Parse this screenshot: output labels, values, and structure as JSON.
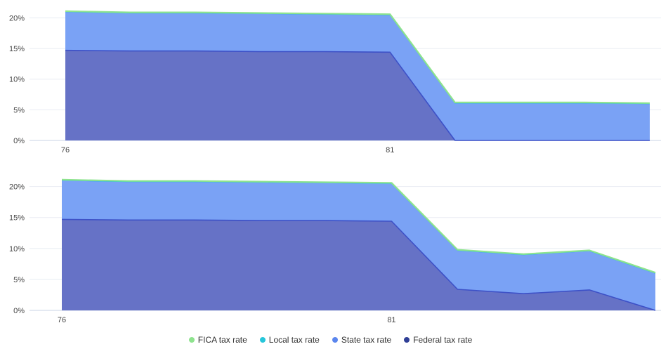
{
  "chart_data": [
    {
      "type": "area",
      "stacked": true,
      "x_labels": [
        "76",
        "",
        "",
        "",
        "",
        "81",
        "",
        "",
        "",
        ""
      ],
      "x_tick_labels": [
        "76",
        "81"
      ],
      "y_ticks": [
        "0%",
        "5%",
        "10%",
        "15%",
        "20%"
      ],
      "ylim": [
        0,
        22
      ],
      "grid": true,
      "series": [
        {
          "name": "Federal tax rate",
          "values": [
            14.7,
            14.6,
            14.6,
            14.5,
            14.5,
            14.4,
            0,
            0,
            0,
            0
          ]
        },
        {
          "name": "State tax rate",
          "values": [
            6.3,
            6.2,
            6.2,
            6.2,
            6.1,
            6.1,
            6.1,
            6.1,
            6.1,
            6.0
          ]
        },
        {
          "name": "Local tax rate",
          "values": [
            0,
            0,
            0,
            0,
            0,
            0,
            0,
            0,
            0,
            0
          ]
        },
        {
          "name": "FICA tax rate",
          "values": [
            0.1,
            0.1,
            0.1,
            0.1,
            0.1,
            0.1,
            0.1,
            0.1,
            0.1,
            0.1
          ]
        }
      ]
    },
    {
      "type": "area",
      "stacked": true,
      "x_labels": [
        "76",
        "",
        "",
        "",
        "",
        "81",
        "",
        "",
        "",
        ""
      ],
      "x_tick_labels": [
        "76",
        "81"
      ],
      "y_ticks": [
        "0%",
        "5%",
        "10%",
        "15%",
        "20%"
      ],
      "ylim": [
        0,
        22
      ],
      "grid": true,
      "series": [
        {
          "name": "Federal tax rate",
          "values": [
            14.7,
            14.6,
            14.6,
            14.5,
            14.5,
            14.4,
            3.4,
            2.7,
            3.3,
            0
          ]
        },
        {
          "name": "State tax rate",
          "values": [
            6.3,
            6.2,
            6.2,
            6.2,
            6.1,
            6.1,
            6.3,
            6.3,
            6.3,
            6.0
          ]
        },
        {
          "name": "Local tax rate",
          "values": [
            0,
            0,
            0,
            0,
            0,
            0,
            0,
            0,
            0,
            0
          ]
        },
        {
          "name": "FICA tax rate",
          "values": [
            0.1,
            0.1,
            0.1,
            0.1,
            0.1,
            0.1,
            0.1,
            0.1,
            0.1,
            0.1
          ]
        }
      ]
    }
  ],
  "colors": {
    "Federal tax rate": "#6672c6",
    "State tax rate": "#7aa2f5",
    "Local tax rate": "#26c6da",
    "FICA tax rate": "#8ee38e",
    "federal_line": "#3d51c7",
    "state_line": "#5b86ee"
  },
  "legend": [
    {
      "label": "FICA tax rate",
      "color": "#8ee38e"
    },
    {
      "label": "Local tax rate",
      "color": "#26c6da"
    },
    {
      "label": "State tax rate",
      "color": "#5b86ee"
    },
    {
      "label": "Federal tax rate",
      "color": "#2f3f96"
    }
  ]
}
